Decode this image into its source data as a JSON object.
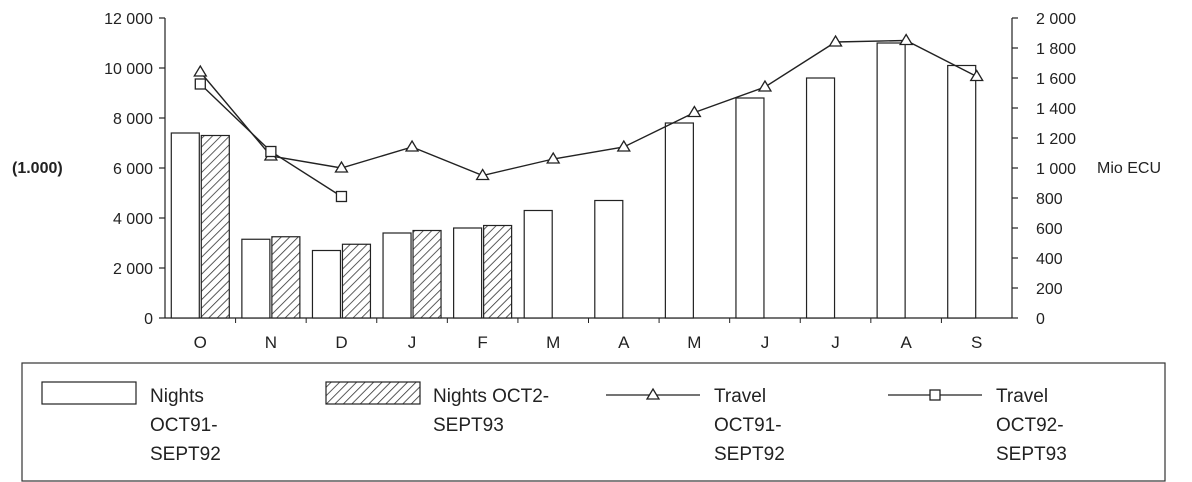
{
  "chart_data": {
    "type": "bar",
    "categories": [
      "O",
      "N",
      "D",
      "J",
      "F",
      "M",
      "A",
      "M",
      "J",
      "J",
      "A",
      "S"
    ],
    "left_axis": {
      "unit_label": "(1.000)",
      "ylim": [
        0,
        12000
      ],
      "ticks": [
        "0",
        "2 000",
        "4 000",
        "6 000",
        "8 000",
        "10 000",
        "12 000"
      ]
    },
    "right_axis": {
      "unit_label": "Mio ECU",
      "ylim": [
        0,
        2000
      ],
      "ticks": [
        "0",
        "200",
        "400",
        "600",
        "800",
        "1 000",
        "1 200",
        "1 400",
        "1 600",
        "1 800",
        "2 000"
      ]
    },
    "series": [
      {
        "name": "Nights OCT91-SEPT92",
        "kind": "bar",
        "axis": "left",
        "values": [
          7400,
          3150,
          2700,
          3400,
          3600,
          4300,
          4700,
          7800,
          8800,
          9600,
          11000,
          10100
        ]
      },
      {
        "name": "Nights OCT2-SEPT93",
        "kind": "bar",
        "axis": "left",
        "pattern": "hatched",
        "values": [
          7300,
          3250,
          2950,
          3500,
          3700,
          null,
          null,
          null,
          null,
          null,
          null,
          null
        ]
      },
      {
        "name": "Travel OCT91-SEPT92",
        "kind": "line",
        "axis": "right",
        "marker": "triangle",
        "values": [
          1640,
          1080,
          1000,
          1140,
          950,
          1060,
          1140,
          1370,
          1540,
          1840,
          1850,
          1610
        ]
      },
      {
        "name": "Travel OCT92-SEPT93",
        "kind": "line",
        "axis": "right",
        "marker": "square",
        "values": [
          1560,
          1110,
          810,
          null,
          null,
          null,
          null,
          null,
          null,
          null,
          null,
          null
        ]
      }
    ]
  },
  "legend": {
    "items": [
      {
        "label_lines": [
          "Nights",
          "OCT91-",
          "SEPT92"
        ]
      },
      {
        "label_lines": [
          "Nights OCT2-",
          "SEPT93"
        ]
      },
      {
        "label_lines": [
          "Travel",
          "OCT91-",
          "SEPT92"
        ]
      },
      {
        "label_lines": [
          "Travel",
          "OCT92-",
          "SEPT93"
        ]
      }
    ]
  }
}
